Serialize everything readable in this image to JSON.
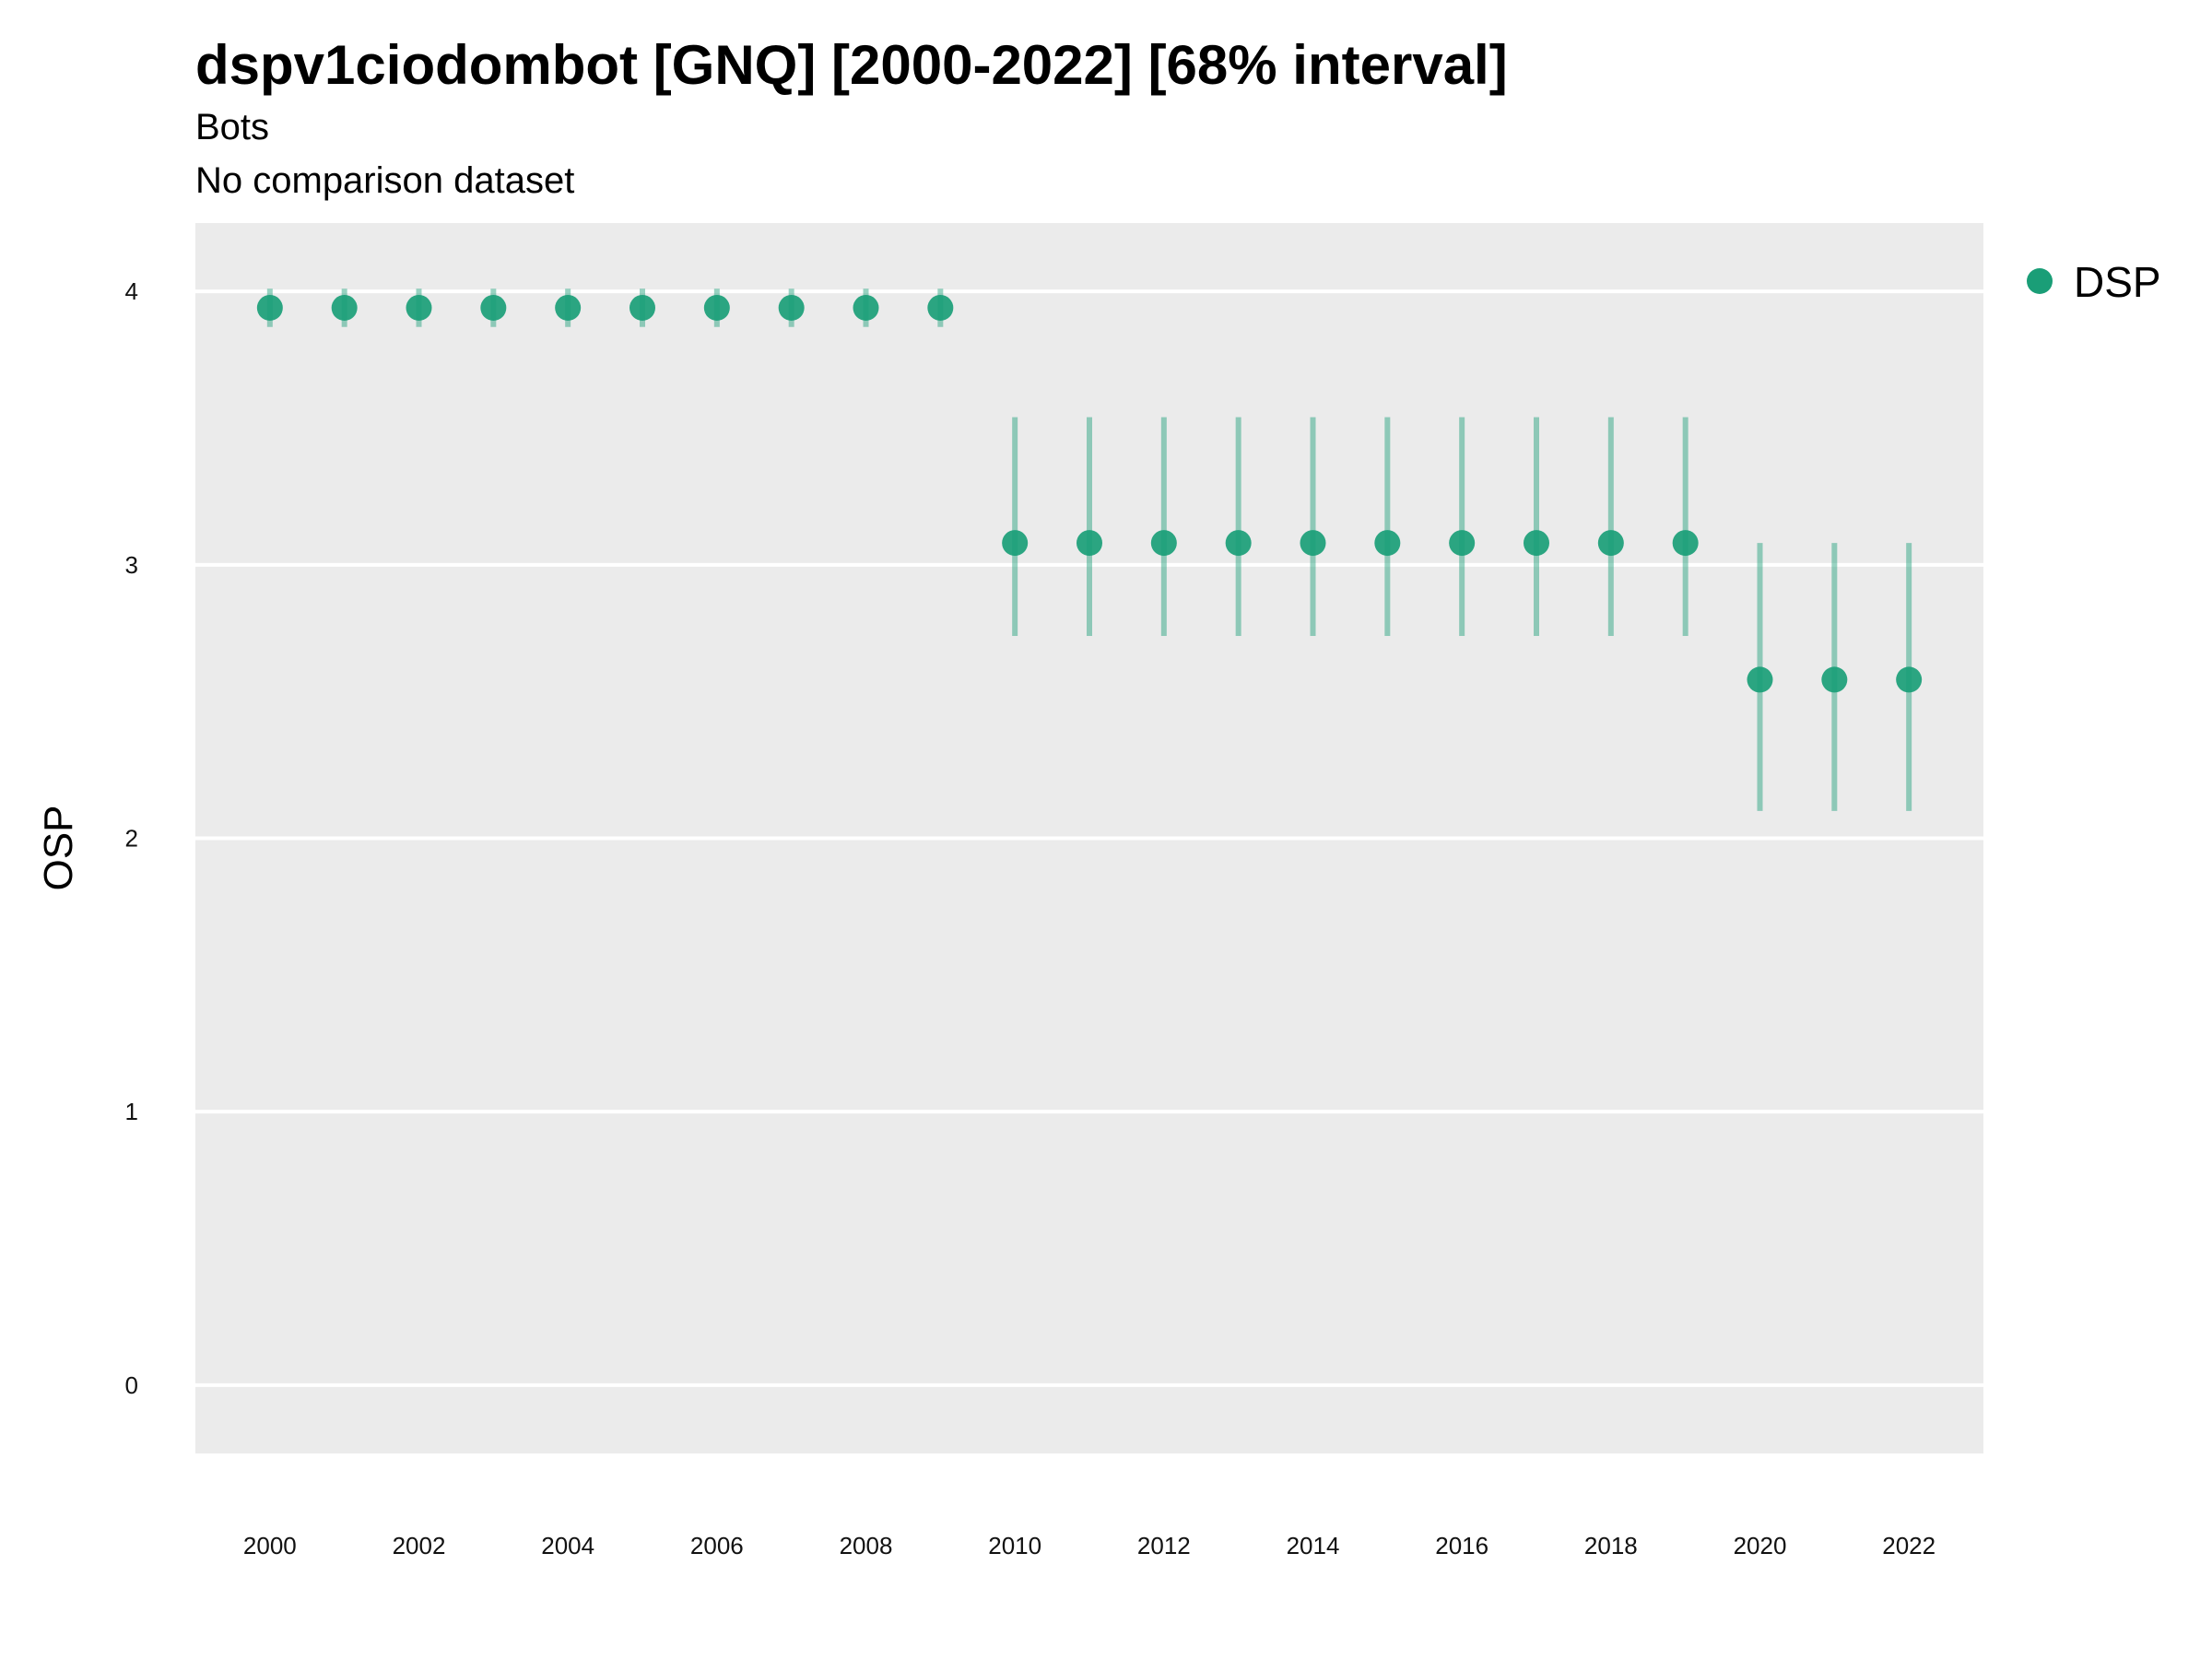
{
  "chart_data": {
    "type": "scatter",
    "title": "dspv1ciodombot [GNQ] [2000-2022] [68% interval]",
    "subtitle": "Bots",
    "caption": "No comparison dataset",
    "xlabel": "",
    "ylabel": "OSP",
    "xlim": [
      1999,
      2023
    ],
    "ylim": [
      -0.25,
      4.25
    ],
    "xticks": [
      2000,
      2002,
      2004,
      2006,
      2008,
      2010,
      2012,
      2014,
      2016,
      2018,
      2020,
      2022
    ],
    "yticks": [
      0,
      1,
      2,
      3,
      4
    ],
    "grid": true,
    "legend_position": "right",
    "series": [
      {
        "name": "DSP",
        "color": "#1a9e77",
        "points": [
          {
            "x": 2000,
            "y": 3.94,
            "lo": 3.87,
            "hi": 4.01
          },
          {
            "x": 2001,
            "y": 3.94,
            "lo": 3.87,
            "hi": 4.01
          },
          {
            "x": 2002,
            "y": 3.94,
            "lo": 3.87,
            "hi": 4.01
          },
          {
            "x": 2003,
            "y": 3.94,
            "lo": 3.87,
            "hi": 4.01
          },
          {
            "x": 2004,
            "y": 3.94,
            "lo": 3.87,
            "hi": 4.01
          },
          {
            "x": 2005,
            "y": 3.94,
            "lo": 3.87,
            "hi": 4.01
          },
          {
            "x": 2006,
            "y": 3.94,
            "lo": 3.87,
            "hi": 4.01
          },
          {
            "x": 2007,
            "y": 3.94,
            "lo": 3.87,
            "hi": 4.01
          },
          {
            "x": 2008,
            "y": 3.94,
            "lo": 3.87,
            "hi": 4.01
          },
          {
            "x": 2009,
            "y": 3.94,
            "lo": 3.87,
            "hi": 4.01
          },
          {
            "x": 2010,
            "y": 3.08,
            "lo": 2.74,
            "hi": 3.54
          },
          {
            "x": 2011,
            "y": 3.08,
            "lo": 2.74,
            "hi": 3.54
          },
          {
            "x": 2012,
            "y": 3.08,
            "lo": 2.74,
            "hi": 3.54
          },
          {
            "x": 2013,
            "y": 3.08,
            "lo": 2.74,
            "hi": 3.54
          },
          {
            "x": 2014,
            "y": 3.08,
            "lo": 2.74,
            "hi": 3.54
          },
          {
            "x": 2015,
            "y": 3.08,
            "lo": 2.74,
            "hi": 3.54
          },
          {
            "x": 2016,
            "y": 3.08,
            "lo": 2.74,
            "hi": 3.54
          },
          {
            "x": 2017,
            "y": 3.08,
            "lo": 2.74,
            "hi": 3.54
          },
          {
            "x": 2018,
            "y": 3.08,
            "lo": 2.74,
            "hi": 3.54
          },
          {
            "x": 2019,
            "y": 3.08,
            "lo": 2.74,
            "hi": 3.54
          },
          {
            "x": 2020,
            "y": 2.58,
            "lo": 2.1,
            "hi": 3.08
          },
          {
            "x": 2021,
            "y": 2.58,
            "lo": 2.1,
            "hi": 3.08
          },
          {
            "x": 2022,
            "y": 2.58,
            "lo": 2.1,
            "hi": 3.08
          }
        ]
      }
    ]
  }
}
